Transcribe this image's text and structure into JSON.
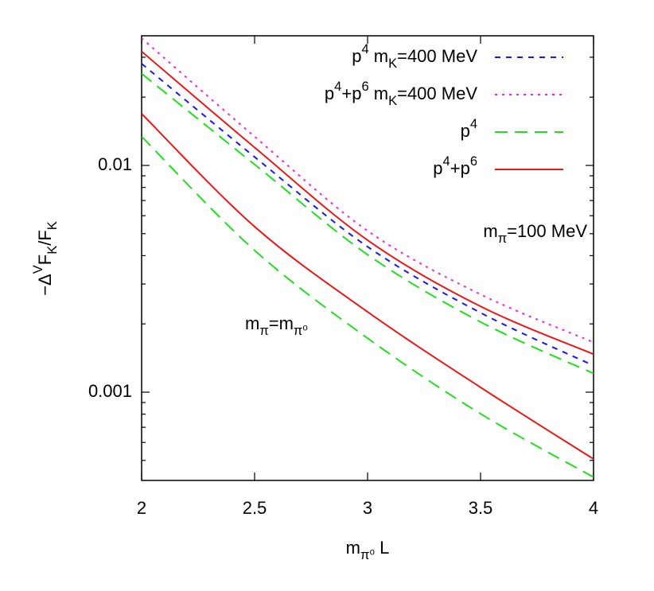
{
  "chart_data": {
    "type": "line",
    "x_label": "m_{π⁰} L",
    "y_label": "−Δ^VF_K/F_K",
    "x": [
      2,
      2.5,
      3,
      3.5,
      4
    ],
    "series": [
      {
        "name": "p^4 m_K=400 MeV",
        "color": "#1a1ae6",
        "dash": "7,7",
        "values": [
          0.0281,
          0.0109,
          0.00438,
          0.00224,
          0.00131
        ]
      },
      {
        "name": "p^4+p^6 m_K=400 MeV",
        "color": "#ee22ee",
        "dash": "3,6",
        "values": [
          0.0364,
          0.0134,
          0.00515,
          0.0027,
          0.00166
        ]
      },
      {
        "name": "p^4",
        "color": "#22dd22",
        "dash": "16,9",
        "values": [
          0.0254,
          0.0101,
          0.00404,
          0.00204,
          0.00121
        ]
      },
      {
        "name": "p^4+p^6",
        "color": "#e61a1a",
        "dash": "none",
        "values": [
          0.0318,
          0.012,
          0.00468,
          0.00239,
          0.00147
        ]
      },
      {
        "color": "#e61a1a",
        "dash": "none",
        "values": [
          0.0169,
          0.00537,
          0.00226,
          0.00105,
          0.000507
        ]
      },
      {
        "color": "#22dd22",
        "dash": "16,9",
        "values": [
          0.0134,
          0.00422,
          0.00173,
          0.000803,
          0.000422
        ]
      }
    ],
    "annotations": [
      "m_π=100 MeV",
      "m_π=m_{π⁰}"
    ],
    "xlim": [
      2,
      4
    ],
    "xticks": [
      2,
      2.5,
      3,
      3.5,
      4
    ],
    "ylim": [
      0.000408,
      0.0373
    ],
    "ylog": true,
    "yticks": [
      0.01,
      0.001
    ],
    "yminorticks": [
      0.0005,
      0.0006,
      0.0007,
      0.0008,
      0.0009,
      0.002,
      0.003,
      0.004,
      0.005,
      0.006,
      0.007,
      0.008,
      0.009,
      0.02,
      0.03
    ],
    "legend": "top-right",
    "grid": false
  }
}
